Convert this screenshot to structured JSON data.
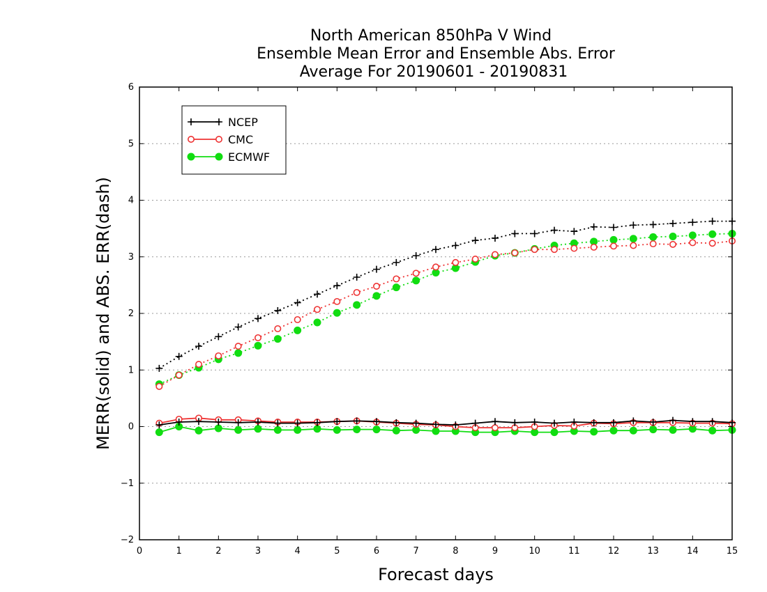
{
  "chart_data": {
    "type": "line",
    "title_lines": [
      "North American 850hPa V Wind",
      "Ensemble Mean Error and Ensemble Abs. Error",
      "Average For 20190601 - 20190831"
    ],
    "xlabel": "Forecast days",
    "ylabel": "MERR(solid) and ABS. ERR(dash)",
    "xlim": [
      0,
      15
    ],
    "ylim": [
      -2,
      6
    ],
    "xticks": [
      "0",
      "1",
      "2",
      "3",
      "4",
      "5",
      "6",
      "7",
      "8",
      "9",
      "10",
      "11",
      "12",
      "13",
      "14",
      "15"
    ],
    "yticks": [
      "−2",
      "−1",
      "0",
      "1",
      "2",
      "3",
      "4",
      "5",
      "6"
    ],
    "grid": "horizontal dotted",
    "legend_position": "top-left",
    "x": [
      0.5,
      1,
      1.5,
      2,
      2.5,
      3,
      3.5,
      4,
      4.5,
      5,
      5.5,
      6,
      6.5,
      7,
      7.5,
      8,
      8.5,
      9,
      9.5,
      10,
      10.5,
      11,
      11.5,
      12,
      12.5,
      13,
      13.5,
      14,
      14.5,
      15
    ],
    "series": [
      {
        "name": "NCEP",
        "color": "#000000",
        "marker": "plus",
        "merr": [
          0.03,
          0.08,
          0.09,
          0.08,
          0.07,
          0.08,
          0.06,
          0.06,
          0.07,
          0.09,
          0.1,
          0.09,
          0.07,
          0.06,
          0.04,
          0.03,
          0.06,
          0.09,
          0.07,
          0.08,
          0.06,
          0.08,
          0.07,
          0.07,
          0.1,
          0.08,
          0.11,
          0.09,
          0.09,
          0.07
        ],
        "abs_err": [
          1.03,
          1.24,
          1.42,
          1.59,
          1.76,
          1.91,
          2.05,
          2.19,
          2.34,
          2.49,
          2.64,
          2.78,
          2.9,
          3.02,
          3.13,
          3.2,
          3.29,
          3.33,
          3.41,
          3.41,
          3.47,
          3.45,
          3.53,
          3.52,
          3.56,
          3.57,
          3.59,
          3.61,
          3.63,
          3.63
        ]
      },
      {
        "name": "CMC",
        "color": "#ee3333",
        "marker": "open-circle",
        "merr": [
          0.06,
          0.13,
          0.15,
          0.12,
          0.12,
          0.1,
          0.08,
          0.08,
          0.08,
          0.09,
          0.1,
          0.08,
          0.06,
          0.04,
          0.03,
          0.0,
          -0.02,
          -0.02,
          -0.02,
          0.0,
          0.02,
          0.01,
          0.06,
          0.05,
          0.07,
          0.07,
          0.07,
          0.06,
          0.06,
          0.05
        ],
        "abs_err": [
          0.71,
          0.91,
          1.1,
          1.25,
          1.42,
          1.57,
          1.73,
          1.89,
          2.07,
          2.21,
          2.37,
          2.48,
          2.61,
          2.71,
          2.82,
          2.9,
          2.96,
          3.04,
          3.07,
          3.13,
          3.13,
          3.15,
          3.17,
          3.19,
          3.2,
          3.23,
          3.22,
          3.25,
          3.24,
          3.28
        ]
      },
      {
        "name": "ECMWF",
        "color": "#11dd11",
        "marker": "filled-circle",
        "merr": [
          -0.1,
          0.0,
          -0.07,
          -0.03,
          -0.06,
          -0.04,
          -0.06,
          -0.06,
          -0.04,
          -0.06,
          -0.05,
          -0.05,
          -0.07,
          -0.06,
          -0.08,
          -0.08,
          -0.1,
          -0.1,
          -0.08,
          -0.1,
          -0.1,
          -0.08,
          -0.09,
          -0.07,
          -0.07,
          -0.05,
          -0.06,
          -0.04,
          -0.07,
          -0.06
        ],
        "abs_err": [
          0.75,
          0.91,
          1.04,
          1.19,
          1.3,
          1.43,
          1.55,
          1.7,
          1.84,
          2.01,
          2.15,
          2.31,
          2.46,
          2.58,
          2.72,
          2.8,
          2.91,
          3.02,
          3.07,
          3.14,
          3.2,
          3.24,
          3.27,
          3.3,
          3.32,
          3.35,
          3.36,
          3.38,
          3.4,
          3.41
        ]
      }
    ]
  }
}
